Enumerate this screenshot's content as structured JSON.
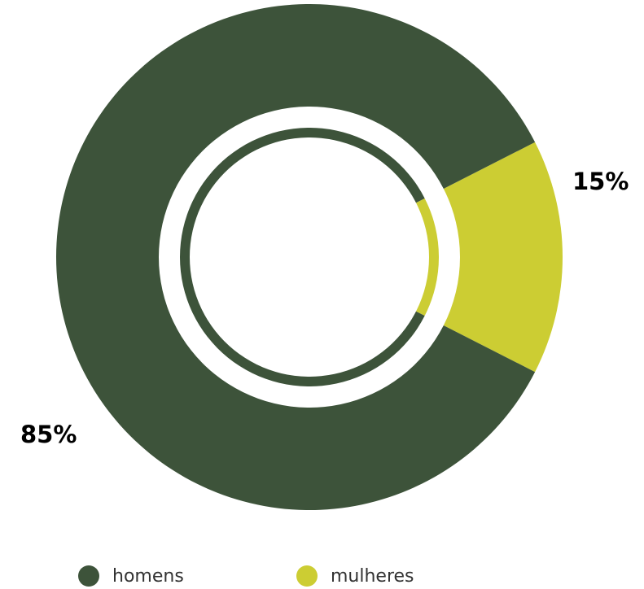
{
  "colors": {
    "men": "#3d533a",
    "women": "#cccd33",
    "background": "#ffffff"
  },
  "chart_data": {
    "type": "pie",
    "categories": [
      "homens",
      "mulheres"
    ],
    "values": [
      85,
      15
    ],
    "data_labels": [
      "85%",
      "15%"
    ],
    "legend": [
      "homens",
      "mulheres"
    ],
    "legend_position": "bottom"
  },
  "labels": {
    "men_pct": "85%",
    "women_pct": "15%"
  },
  "legend": {
    "men": "homens",
    "women": "mulheres"
  }
}
